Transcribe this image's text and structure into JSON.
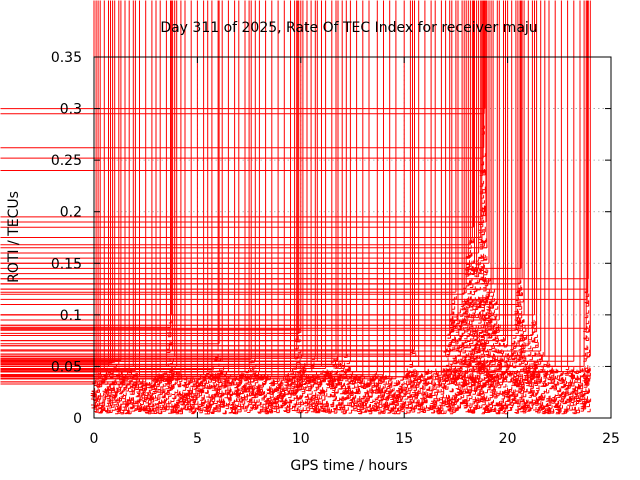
{
  "chart_data": {
    "type": "scatter",
    "title": "Day 311 of 2025, Rate Of TEC Index for receiver maju",
    "xlabel": "GPS time / hours",
    "ylabel": "ROTI / TECUs",
    "xlim": [
      0,
      25
    ],
    "ylim": [
      0,
      0.35
    ],
    "xticks": [
      0,
      5,
      10,
      15,
      20,
      25
    ],
    "xtick_labels": [
      "0",
      "5",
      "10",
      "15",
      "20",
      "25"
    ],
    "yticks": [
      0,
      0.05,
      0.1,
      0.15,
      0.2,
      0.25,
      0.3,
      0.35
    ],
    "ytick_labels": [
      "0",
      "0.05",
      "0.1",
      "0.15",
      "0.2",
      "0.25",
      "0.3",
      "0.35"
    ],
    "grid": true,
    "marker": "+",
    "color": "#ff0000",
    "series": [
      {
        "name": "ROTI",
        "points": [
          [
            0.0,
            0.041
          ],
          [
            0.1,
            0.035
          ],
          [
            0.2,
            0.038
          ],
          [
            0.3,
            0.045
          ],
          [
            0.5,
            0.048
          ],
          [
            0.7,
            0.05
          ],
          [
            0.8,
            0.053
          ],
          [
            0.9,
            0.055
          ],
          [
            1.0,
            0.054
          ],
          [
            1.2,
            0.052
          ],
          [
            1.3,
            0.056
          ],
          [
            1.5,
            0.045
          ],
          [
            1.7,
            0.048
          ],
          [
            1.9,
            0.05
          ],
          [
            2.0,
            0.046
          ],
          [
            2.2,
            0.04
          ],
          [
            2.5,
            0.035
          ],
          [
            2.8,
            0.033
          ],
          [
            3.0,
            0.04
          ],
          [
            3.2,
            0.045
          ],
          [
            3.5,
            0.05
          ],
          [
            3.7,
            0.088
          ],
          [
            3.75,
            0.1
          ],
          [
            3.8,
            0.065
          ],
          [
            3.9,
            0.06
          ],
          [
            4.0,
            0.05
          ],
          [
            4.2,
            0.045
          ],
          [
            4.4,
            0.04
          ],
          [
            4.7,
            0.038
          ],
          [
            5.0,
            0.04
          ],
          [
            5.3,
            0.042
          ],
          [
            5.5,
            0.045
          ],
          [
            5.7,
            0.047
          ],
          [
            6.0,
            0.065
          ],
          [
            6.05,
            0.072
          ],
          [
            6.2,
            0.055
          ],
          [
            6.5,
            0.045
          ],
          [
            6.8,
            0.04
          ],
          [
            7.0,
            0.042
          ],
          [
            7.3,
            0.045
          ],
          [
            7.5,
            0.05
          ],
          [
            7.6,
            0.057
          ],
          [
            7.8,
            0.055
          ],
          [
            8.0,
            0.045
          ],
          [
            8.3,
            0.042
          ],
          [
            8.6,
            0.04
          ],
          [
            8.9,
            0.038
          ],
          [
            9.2,
            0.04
          ],
          [
            9.5,
            0.045
          ],
          [
            9.7,
            0.058
          ],
          [
            9.8,
            0.065
          ],
          [
            9.85,
            0.075
          ],
          [
            9.9,
            0.082
          ],
          [
            10.0,
            0.086
          ],
          [
            10.1,
            0.06
          ],
          [
            10.3,
            0.05
          ],
          [
            10.5,
            0.048
          ],
          [
            10.7,
            0.06
          ],
          [
            10.8,
            0.055
          ],
          [
            11.0,
            0.05
          ],
          [
            11.2,
            0.048
          ],
          [
            11.5,
            0.052
          ],
          [
            11.7,
            0.062
          ],
          [
            11.8,
            0.058
          ],
          [
            12.0,
            0.052
          ],
          [
            12.2,
            0.06
          ],
          [
            12.4,
            0.055
          ],
          [
            12.7,
            0.045
          ],
          [
            13.0,
            0.042
          ],
          [
            13.3,
            0.04
          ],
          [
            13.7,
            0.045
          ],
          [
            14.0,
            0.042
          ],
          [
            14.3,
            0.04
          ],
          [
            14.6,
            0.038
          ],
          [
            15.0,
            0.04
          ],
          [
            15.3,
            0.055
          ],
          [
            15.4,
            0.062
          ],
          [
            15.5,
            0.066
          ],
          [
            15.7,
            0.05
          ],
          [
            16.0,
            0.04
          ],
          [
            16.3,
            0.055
          ],
          [
            16.5,
            0.05
          ],
          [
            16.8,
            0.045
          ],
          [
            17.0,
            0.06
          ],
          [
            17.2,
            0.08
          ],
          [
            17.3,
            0.1
          ],
          [
            17.5,
            0.122
          ],
          [
            17.6,
            0.09
          ],
          [
            17.8,
            0.11
          ],
          [
            17.9,
            0.12
          ],
          [
            18.0,
            0.13
          ],
          [
            18.1,
            0.155
          ],
          [
            18.2,
            0.168
          ],
          [
            18.3,
            0.175
          ],
          [
            18.35,
            0.185
          ],
          [
            18.4,
            0.15
          ],
          [
            18.5,
            0.14
          ],
          [
            18.6,
            0.16
          ],
          [
            18.7,
            0.175
          ],
          [
            18.75,
            0.195
          ],
          [
            18.8,
            0.24
          ],
          [
            18.82,
            0.252
          ],
          [
            18.85,
            0.262
          ],
          [
            18.87,
            0.295
          ],
          [
            18.9,
            0.3
          ],
          [
            18.95,
            0.19
          ],
          [
            19.0,
            0.165
          ],
          [
            19.1,
            0.15
          ],
          [
            19.2,
            0.125
          ],
          [
            19.3,
            0.13
          ],
          [
            19.5,
            0.11
          ],
          [
            19.6,
            0.095
          ],
          [
            19.8,
            0.08
          ],
          [
            19.9,
            0.075
          ],
          [
            20.0,
            0.07
          ],
          [
            20.2,
            0.06
          ],
          [
            20.4,
            0.085
          ],
          [
            20.5,
            0.11
          ],
          [
            20.6,
            0.13
          ],
          [
            20.65,
            0.145
          ],
          [
            20.7,
            0.135
          ],
          [
            20.8,
            0.1
          ],
          [
            21.0,
            0.07
          ],
          [
            21.2,
            0.08
          ],
          [
            21.3,
            0.1
          ],
          [
            21.4,
            0.09
          ],
          [
            21.6,
            0.065
          ],
          [
            21.8,
            0.06
          ],
          [
            22.0,
            0.055
          ],
          [
            22.3,
            0.05
          ],
          [
            22.6,
            0.045
          ],
          [
            22.9,
            0.05
          ],
          [
            23.2,
            0.055
          ],
          [
            23.5,
            0.045
          ],
          [
            23.7,
            0.05
          ],
          [
            23.8,
            0.087
          ],
          [
            23.85,
            0.115
          ],
          [
            23.88,
            0.125
          ],
          [
            23.9,
            0.135
          ],
          [
            24.0,
            0.06
          ]
        ]
      }
    ]
  }
}
